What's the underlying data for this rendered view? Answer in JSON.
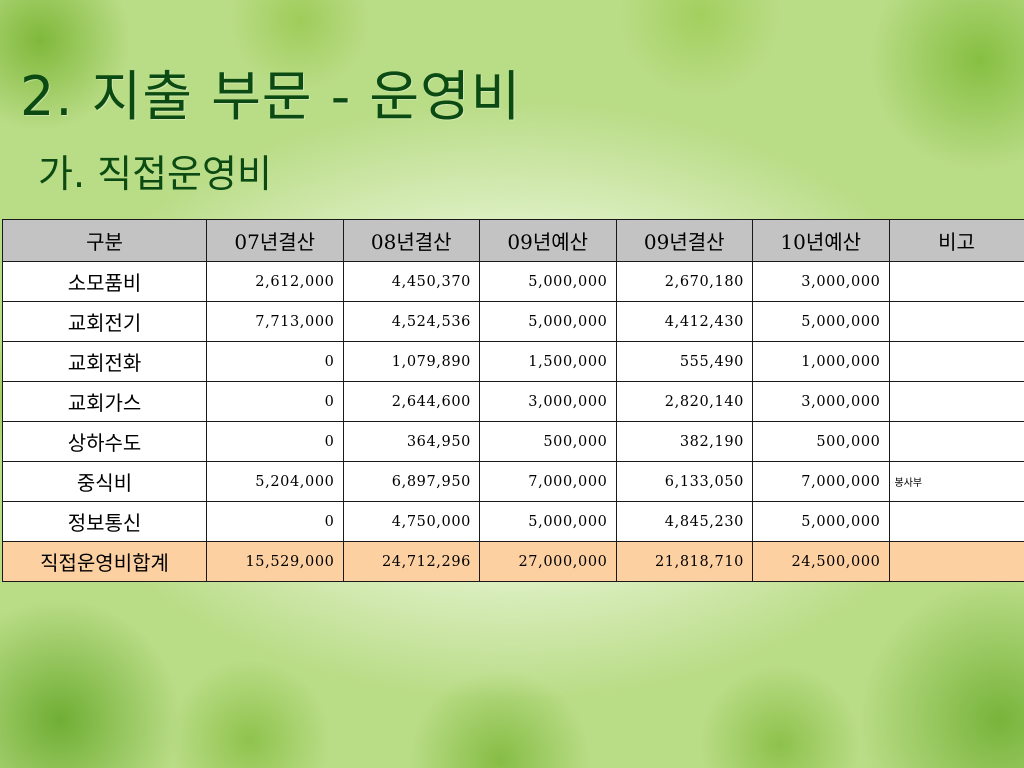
{
  "slide": {
    "title": "2. 지출 부문 - 운영비",
    "subtitle": "가. 직접운영비"
  },
  "table": {
    "headers": [
      "구분",
      "07년결산",
      "08년결산",
      "09년예산",
      "09년결산",
      "10년예산",
      "비고"
    ],
    "rows": [
      {
        "label": "소모품비",
        "values": [
          "2,612,000",
          "4,450,370",
          "5,000,000",
          "2,670,180",
          "3,000,000"
        ],
        "note": ""
      },
      {
        "label": "교회전기",
        "values": [
          "7,713,000",
          "4,524,536",
          "5,000,000",
          "4,412,430",
          "5,000,000"
        ],
        "note": ""
      },
      {
        "label": "교회전화",
        "values": [
          "0",
          "1,079,890",
          "1,500,000",
          "555,490",
          "1,000,000"
        ],
        "note": ""
      },
      {
        "label": "교회가스",
        "values": [
          "0",
          "2,644,600",
          "3,000,000",
          "2,820,140",
          "3,000,000"
        ],
        "note": ""
      },
      {
        "label": "상하수도",
        "values": [
          "0",
          "364,950",
          "500,000",
          "382,190",
          "500,000"
        ],
        "note": ""
      },
      {
        "label": "중식비",
        "values": [
          "5,204,000",
          "6,897,950",
          "7,000,000",
          "6,133,050",
          "7,000,000"
        ],
        "note": "봉사부"
      },
      {
        "label": "정보통신",
        "values": [
          "0",
          "4,750,000",
          "5,000,000",
          "4,845,230",
          "5,000,000"
        ],
        "note": ""
      }
    ],
    "total": {
      "label": "직접운영비합계",
      "values": [
        "15,529,000",
        "24,712,296",
        "27,000,000",
        "21,818,710",
        "24,500,000"
      ],
      "note": ""
    }
  },
  "colors": {
    "title_text": "#0b4a12",
    "header_bg": "#c3c3c3",
    "total_row_bg": "#fdd0a2"
  }
}
